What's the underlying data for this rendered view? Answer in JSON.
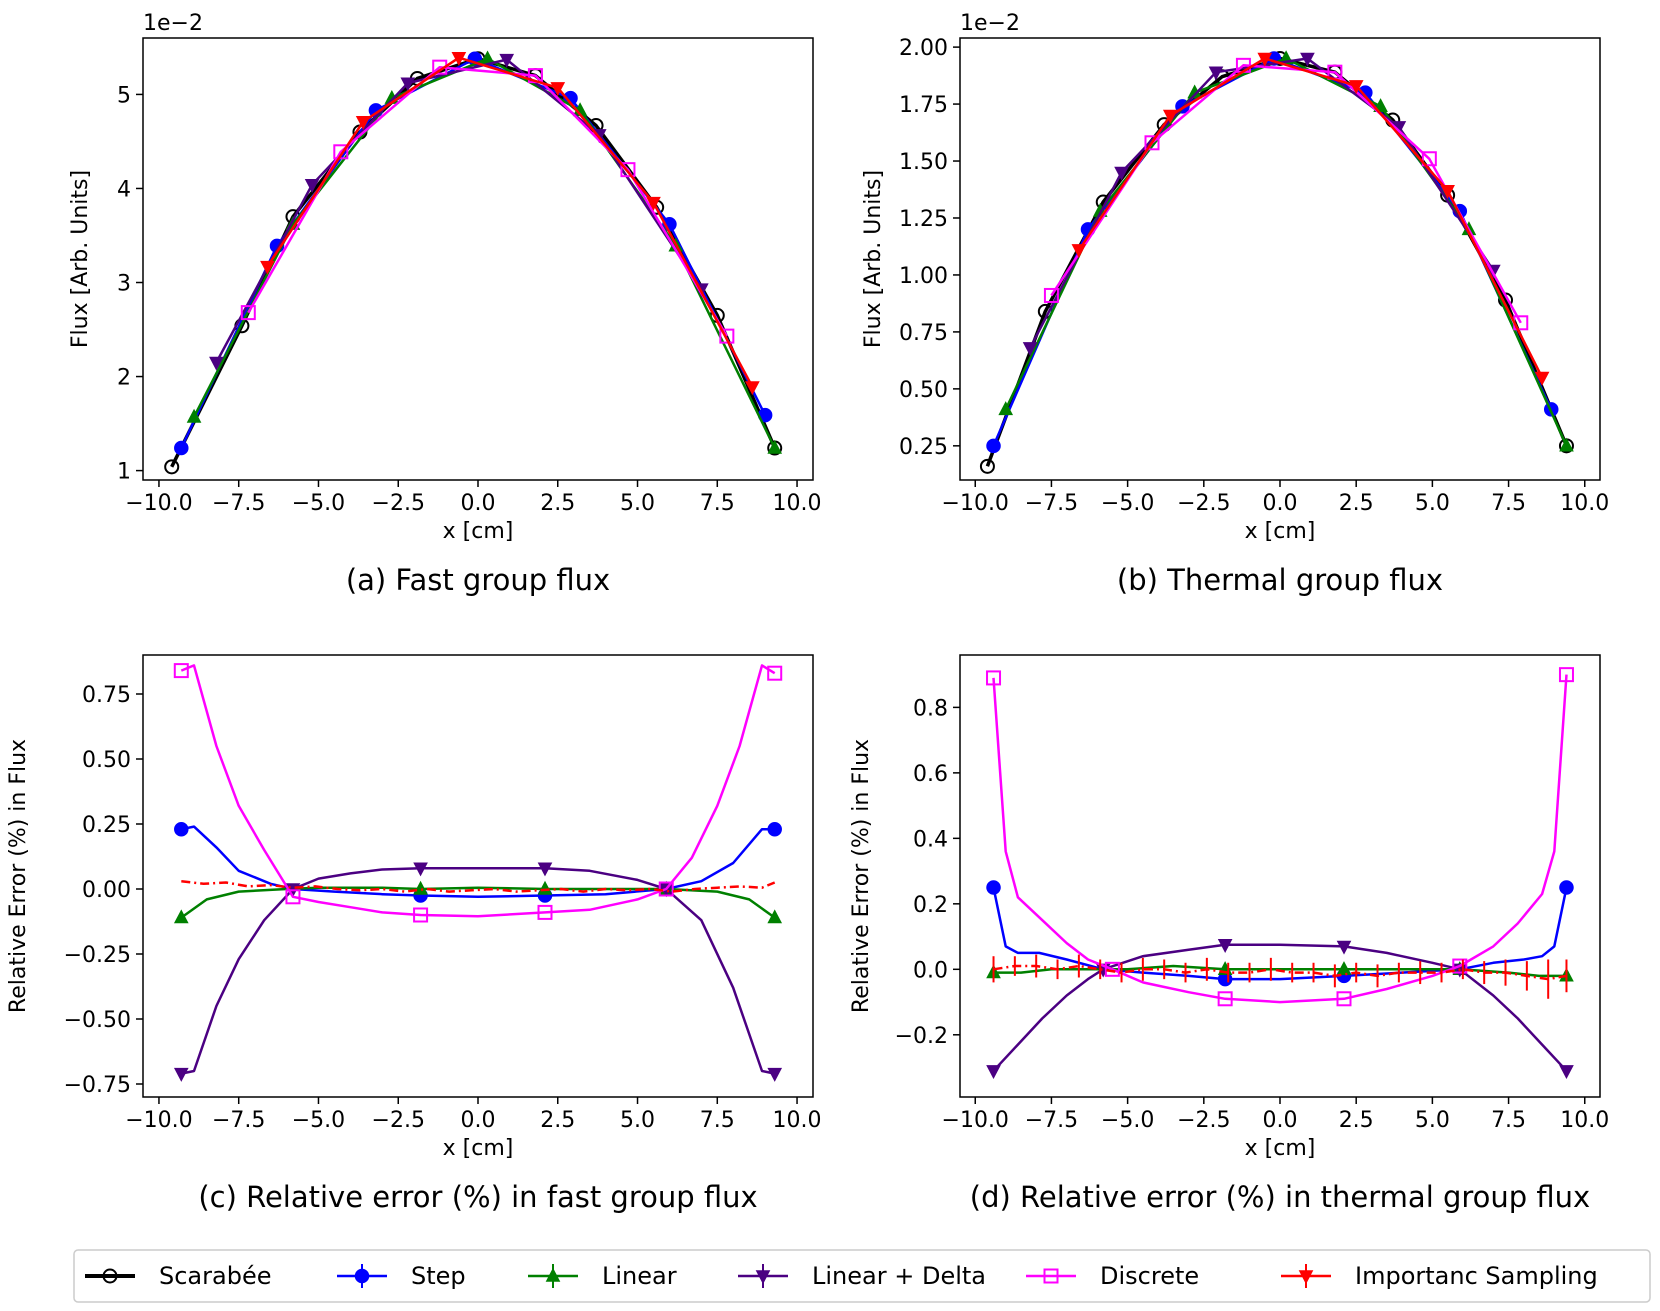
{
  "figure": {
    "legend": [
      {
        "label": "Scarabée",
        "color": "#000000",
        "marker": "circle-open"
      },
      {
        "label": "Step",
        "color": "#0000ff",
        "marker": "circle"
      },
      {
        "label": "Linear",
        "color": "#008000",
        "marker": "triangle-up"
      },
      {
        "label": "Linear + Delta",
        "color": "#4b0082",
        "marker": "triangle-down"
      },
      {
        "label": "Discrete",
        "color": "#ff00ff",
        "marker": "square-open"
      },
      {
        "label": "Importanc Sampling",
        "color": "#ff0000",
        "marker": "triangle-down"
      }
    ]
  },
  "chart_data": [
    {
      "id": "a",
      "type": "line",
      "caption": "(a) Fast group flux",
      "xlabel": "x [cm]",
      "ylabel": "Flux [Arb. Units]",
      "offset_text": "1e−2",
      "xlim": [
        -10.5,
        10.5
      ],
      "ylim": [
        0.9,
        5.6
      ],
      "xticks": [
        -10,
        -7.5,
        -5,
        -2.5,
        0,
        2.5,
        5,
        7.5,
        10
      ],
      "xtick_labels": [
        "−10.0",
        "−7.5",
        "−5.0",
        "−2.5",
        "0.0",
        "2.5",
        "5.0",
        "7.5",
        "10.0"
      ],
      "yticks": [
        1,
        2,
        3,
        4,
        5
      ],
      "ytick_labels": [
        "1",
        "2",
        "3",
        "4",
        "5"
      ],
      "series": [
        {
          "name": "Scarabée",
          "color": "#000000",
          "marker": "circle-open",
          "x": [
            -9.6,
            -7.4,
            -5.8,
            -3.7,
            -1.9,
            0,
            1.8,
            3.7,
            5.6,
            7.5,
            9.3
          ],
          "y": [
            1.04,
            2.54,
            3.7,
            4.6,
            5.17,
            5.38,
            5.2,
            4.67,
            3.8,
            2.65,
            1.24
          ]
        },
        {
          "name": "Step",
          "color": "#0000ff",
          "marker": "circle",
          "x": [
            -9.3,
            -6.3,
            -3.2,
            -0.1,
            2.9,
            6.0,
            9.0
          ],
          "y": [
            1.24,
            3.39,
            4.83,
            5.38,
            4.96,
            3.62,
            1.59
          ]
        },
        {
          "name": "Linear",
          "color": "#008000",
          "marker": "triangle-up",
          "x": [
            -8.9,
            -5.8,
            -2.7,
            0.3,
            3.2,
            6.2,
            9.3
          ],
          "y": [
            1.57,
            3.62,
            4.96,
            5.38,
            4.83,
            3.39,
            1.24
          ]
        },
        {
          "name": "Linear + Delta",
          "color": "#4b0082",
          "marker": "triangle-down",
          "x": [
            -8.2,
            -5.2,
            -2.2,
            0.9,
            3.8,
            7.0
          ],
          "y": [
            2.15,
            4.04,
            5.12,
            5.37,
            4.57,
            2.93
          ]
        },
        {
          "name": "Discrete",
          "color": "#ff00ff",
          "marker": "square-open",
          "x": [
            -7.2,
            -4.3,
            -1.2,
            1.8,
            4.7,
            7.8
          ],
          "y": [
            2.68,
            4.39,
            5.29,
            5.2,
            4.2,
            2.43
          ]
        },
        {
          "name": "Importanc Sampling",
          "color": "#ff0000",
          "marker": "triangle-down",
          "x": [
            -6.6,
            -3.6,
            -0.6,
            2.5,
            5.5,
            8.6
          ],
          "y": [
            3.17,
            4.71,
            5.39,
            5.07,
            3.85,
            1.89
          ]
        }
      ]
    },
    {
      "id": "b",
      "type": "line",
      "caption": "(b) Thermal group flux",
      "xlabel": "x [cm]",
      "ylabel": "Flux [Arb. Units]",
      "offset_text": "1e−2",
      "xlim": [
        -10.5,
        10.5
      ],
      "ylim": [
        0.1,
        2.04
      ],
      "xticks": [
        -10,
        -7.5,
        -5,
        -2.5,
        0,
        2.5,
        5,
        7.5,
        10
      ],
      "xtick_labels": [
        "−10.0",
        "−7.5",
        "−5.0",
        "−2.5",
        "0.0",
        "2.5",
        "5.0",
        "7.5",
        "10.0"
      ],
      "yticks": [
        0.25,
        0.5,
        0.75,
        1.0,
        1.25,
        1.5,
        1.75,
        2.0
      ],
      "ytick_labels": [
        "0.25",
        "0.50",
        "0.75",
        "1.00",
        "1.25",
        "1.50",
        "1.75",
        "2.00"
      ],
      "series": [
        {
          "name": "Scarabée",
          "color": "#000000",
          "marker": "circle-open",
          "x": [
            -9.6,
            -7.7,
            -5.8,
            -3.8,
            -1.9,
            0,
            1.8,
            3.7,
            5.5,
            7.4,
            9.4
          ],
          "y": [
            0.16,
            0.84,
            1.32,
            1.66,
            1.87,
            1.95,
            1.89,
            1.68,
            1.35,
            0.89,
            0.25
          ]
        },
        {
          "name": "Step",
          "color": "#0000ff",
          "marker": "circle",
          "x": [
            -9.4,
            -6.3,
            -3.2,
            -0.2,
            2.8,
            5.9,
            8.9
          ],
          "y": [
            0.25,
            1.2,
            1.74,
            1.95,
            1.8,
            1.28,
            0.41
          ]
        },
        {
          "name": "Linear",
          "color": "#008000",
          "marker": "triangle-up",
          "x": [
            -9.0,
            -5.9,
            -2.8,
            0.2,
            3.3,
            6.2,
            9.4
          ],
          "y": [
            0.41,
            1.28,
            1.8,
            1.95,
            1.74,
            1.2,
            0.25
          ]
        },
        {
          "name": "Linear + Delta",
          "color": "#4b0082",
          "marker": "triangle-down",
          "x": [
            -8.2,
            -5.2,
            -2.1,
            0.9,
            3.9,
            7.0
          ],
          "y": [
            0.68,
            1.45,
            1.89,
            1.95,
            1.65,
            1.02
          ]
        },
        {
          "name": "Discrete",
          "color": "#ff00ff",
          "marker": "square-open",
          "x": [
            -7.5,
            -4.2,
            -1.2,
            1.8,
            4.9,
            7.9
          ],
          "y": [
            0.91,
            1.58,
            1.92,
            1.89,
            1.51,
            0.79
          ]
        },
        {
          "name": "Importanc Sampling",
          "color": "#ff0000",
          "marker": "triangle-down",
          "x": [
            -6.6,
            -3.6,
            -0.5,
            2.5,
            5.5,
            8.6
          ],
          "y": [
            1.11,
            1.7,
            1.95,
            1.83,
            1.37,
            0.55
          ]
        }
      ]
    },
    {
      "id": "c",
      "type": "line",
      "caption": "(c) Relative error (%) in fast group flux",
      "xlabel": "x [cm]",
      "ylabel": "Relative Error (%) in Flux",
      "offset_text": "",
      "xlim": [
        -10.5,
        10.5
      ],
      "ylim": [
        -0.8,
        0.9
      ],
      "xticks": [
        -10,
        -7.5,
        -5,
        -2.5,
        0,
        2.5,
        5,
        7.5,
        10
      ],
      "xtick_labels": [
        "−10.0",
        "−7.5",
        "−5.0",
        "−2.5",
        "0.0",
        "2.5",
        "5.0",
        "7.5",
        "10.0"
      ],
      "yticks": [
        -0.75,
        -0.5,
        -0.25,
        0,
        0.25,
        0.5,
        0.75
      ],
      "ytick_labels": [
        "−0.75",
        "−0.50",
        "−0.25",
        "0.00",
        "0.25",
        "0.50",
        "0.75"
      ],
      "series": [
        {
          "name": "Step",
          "color": "#0000ff",
          "marker": "circle",
          "x": [
            -9.3,
            -8.9,
            -8.2,
            -7.5,
            -6.5,
            -5.8,
            -4.5,
            -3,
            -1.8,
            0,
            2.1,
            4,
            5.9,
            7,
            8,
            8.9,
            9.3
          ],
          "y": [
            0.23,
            0.24,
            0.16,
            0.07,
            0.02,
            0.0,
            -0.01,
            -0.02,
            -0.025,
            -0.03,
            -0.025,
            -0.02,
            0.0,
            0.03,
            0.1,
            0.23,
            0.23
          ],
          "marker_idx": [
            0,
            8,
            10,
            16
          ]
        },
        {
          "name": "Linear",
          "color": "#008000",
          "marker": "triangle-up",
          "x": [
            -9.3,
            -8.5,
            -7.5,
            -6,
            -5,
            -3,
            -1.8,
            0,
            2.1,
            4,
            5.9,
            7.5,
            8.5,
            9.3
          ],
          "y": [
            -0.11,
            -0.04,
            -0.01,
            0.0,
            0.005,
            0.005,
            0.0,
            0.005,
            0.0,
            0.0,
            0.0,
            -0.01,
            -0.04,
            -0.11
          ],
          "marker_idx": [
            0,
            6,
            8,
            10,
            13
          ]
        },
        {
          "name": "Linear + Delta",
          "color": "#4b0082",
          "marker": "triangle-down",
          "x": [
            -9.3,
            -8.9,
            -8.2,
            -7.5,
            -6.7,
            -5.8,
            -5,
            -4,
            -3,
            -1.8,
            0,
            2.1,
            3.5,
            5,
            5.9,
            7,
            8,
            8.9,
            9.3
          ],
          "y": [
            -0.71,
            -0.7,
            -0.45,
            -0.27,
            -0.12,
            0.0,
            0.04,
            0.06,
            0.075,
            0.08,
            0.08,
            0.08,
            0.07,
            0.035,
            0.0,
            -0.12,
            -0.38,
            -0.7,
            -0.71
          ],
          "marker_idx": [
            0,
            5,
            9,
            11,
            14,
            18
          ]
        },
        {
          "name": "Discrete",
          "color": "#ff00ff",
          "marker": "square-open",
          "x": [
            -9.3,
            -8.9,
            -8.2,
            -7.5,
            -6.7,
            -5.8,
            -5,
            -4,
            -3,
            -1.8,
            0,
            2.1,
            3.5,
            5,
            5.9,
            6.7,
            7.5,
            8.2,
            8.9,
            9.3
          ],
          "y": [
            0.84,
            0.86,
            0.55,
            0.32,
            0.15,
            -0.03,
            -0.05,
            -0.07,
            -0.09,
            -0.1,
            -0.105,
            -0.09,
            -0.08,
            -0.04,
            0.0,
            0.12,
            0.32,
            0.55,
            0.86,
            0.83
          ],
          "marker_idx": [
            0,
            5,
            9,
            11,
            14,
            19
          ]
        },
        {
          "name": "Importanc Sampling",
          "color": "#ff0000",
          "marker": "none",
          "dashed": true,
          "x": [
            -9.3,
            -8.6,
            -7.9,
            -7.2,
            -6.5,
            -5.8,
            -5.1,
            -4.4,
            -3.7,
            -3,
            -2.3,
            -1.6,
            -0.9,
            -0.2,
            0.5,
            1.2,
            1.9,
            2.6,
            3.3,
            4,
            4.7,
            5.4,
            6.1,
            6.8,
            7.5,
            8.2,
            8.9,
            9.3
          ],
          "y": [
            0.03,
            0.02,
            0.025,
            0.01,
            0.015,
            0.005,
            0.01,
            0.0,
            -0.005,
            0.0,
            -0.01,
            0.0,
            -0.01,
            -0.005,
            0.0,
            -0.01,
            -0.005,
            0.0,
            -0.01,
            0.0,
            -0.005,
            0.0,
            -0.01,
            0.0,
            0.005,
            0.01,
            0.005,
            0.025
          ]
        }
      ]
    },
    {
      "id": "d",
      "type": "line",
      "caption": "(d) Relative error (%) in thermal group flux",
      "xlabel": "x [cm]",
      "ylabel": "Relative Error (%) in Flux",
      "offset_text": "",
      "xlim": [
        -10.5,
        10.5
      ],
      "ylim": [
        -0.39,
        0.96
      ],
      "xticks": [
        -10,
        -7.5,
        -5,
        -2.5,
        0,
        2.5,
        5,
        7.5,
        10
      ],
      "xtick_labels": [
        "−10.0",
        "−7.5",
        "−5.0",
        "−2.5",
        "0.0",
        "2.5",
        "5.0",
        "7.5",
        "10.0"
      ],
      "yticks": [
        -0.2,
        0,
        0.2,
        0.4,
        0.6,
        0.8
      ],
      "ytick_labels": [
        "−0.2",
        "0.0",
        "0.2",
        "0.4",
        "0.6",
        "0.8"
      ],
      "series": [
        {
          "name": "Step",
          "color": "#0000ff",
          "marker": "circle",
          "x": [
            -9.4,
            -9.0,
            -8.6,
            -7.9,
            -7,
            -5.8,
            -4.5,
            -3,
            -1.8,
            0,
            2.1,
            4,
            5.9,
            7,
            8,
            8.6,
            9.0,
            9.4
          ],
          "y": [
            0.25,
            0.07,
            0.05,
            0.05,
            0.03,
            0.0,
            -0.01,
            -0.02,
            -0.03,
            -0.03,
            -0.02,
            -0.01,
            0.0,
            0.02,
            0.03,
            0.04,
            0.07,
            0.25
          ],
          "marker_idx": [
            0,
            8,
            10,
            17
          ]
        },
        {
          "name": "Linear",
          "color": "#008000",
          "marker": "triangle-up",
          "x": [
            -9.4,
            -8.5,
            -7.5,
            -6.3,
            -5,
            -3.5,
            -1.8,
            0,
            2.1,
            4,
            5.9,
            7.5,
            8.5,
            9.4
          ],
          "y": [
            -0.01,
            -0.01,
            0.0,
            0.0,
            0.0,
            0.01,
            0.0,
            0.0,
            0.0,
            0.0,
            0.0,
            -0.01,
            -0.02,
            -0.02
          ],
          "marker_idx": [
            0,
            6,
            8,
            10,
            13
          ]
        },
        {
          "name": "Linear + Delta",
          "color": "#4b0082",
          "marker": "triangle-down",
          "x": [
            -9.4,
            -8.6,
            -7.8,
            -7,
            -6.3,
            -5.8,
            -4.5,
            -3,
            -1.8,
            0,
            2.1,
            3.5,
            5,
            5.9,
            7,
            7.8,
            8.6,
            9.4
          ],
          "y": [
            -0.31,
            -0.23,
            -0.15,
            -0.08,
            -0.03,
            0.0,
            0.04,
            0.06,
            0.075,
            0.075,
            0.07,
            0.05,
            0.02,
            0.0,
            -0.08,
            -0.15,
            -0.23,
            -0.31
          ],
          "marker_idx": [
            0,
            5,
            8,
            10,
            13,
            17
          ]
        },
        {
          "name": "Discrete",
          "color": "#ff00ff",
          "marker": "square-open",
          "x": [
            -9.4,
            -9.0,
            -8.6,
            -7.8,
            -7,
            -6.3,
            -5.5,
            -4.5,
            -3,
            -1.8,
            0,
            2.1,
            3.5,
            5,
            5.9,
            7,
            7.8,
            8.6,
            9.0,
            9.4
          ],
          "y": [
            0.89,
            0.36,
            0.22,
            0.15,
            0.08,
            0.03,
            0.0,
            -0.04,
            -0.07,
            -0.09,
            -0.1,
            -0.09,
            -0.06,
            -0.02,
            0.01,
            0.07,
            0.14,
            0.23,
            0.36,
            0.9
          ],
          "marker_idx": [
            0,
            6,
            9,
            11,
            14,
            19
          ]
        },
        {
          "name": "Importanc Sampling",
          "color": "#ff0000",
          "marker": "none",
          "dashed": true,
          "errorbars": true,
          "x": [
            -9.4,
            -8.7,
            -8.0,
            -7.3,
            -6.6,
            -5.9,
            -5.2,
            -4.5,
            -3.8,
            -3.1,
            -2.4,
            -1.7,
            -1.0,
            -0.3,
            0.4,
            1.1,
            1.8,
            2.5,
            3.2,
            3.9,
            4.6,
            5.3,
            6.0,
            6.7,
            7.4,
            8.1,
            8.8,
            9.4
          ],
          "y": [
            0.0,
            0.01,
            0.01,
            0.0,
            0.01,
            0.0,
            -0.01,
            0.0,
            0.0,
            -0.01,
            0.0,
            -0.01,
            -0.01,
            0.0,
            -0.01,
            -0.01,
            -0.02,
            -0.01,
            -0.02,
            -0.01,
            -0.01,
            -0.01,
            0.0,
            -0.01,
            -0.01,
            -0.02,
            -0.03,
            -0.02
          ],
          "err": [
            0.04,
            0.03,
            0.035,
            0.03,
            0.035,
            0.03,
            0.03,
            0.035,
            0.03,
            0.03,
            0.035,
            0.03,
            0.03,
            0.035,
            0.03,
            0.03,
            0.035,
            0.03,
            0.035,
            0.03,
            0.035,
            0.03,
            0.03,
            0.035,
            0.04,
            0.045,
            0.06,
            0.05
          ]
        }
      ]
    }
  ]
}
